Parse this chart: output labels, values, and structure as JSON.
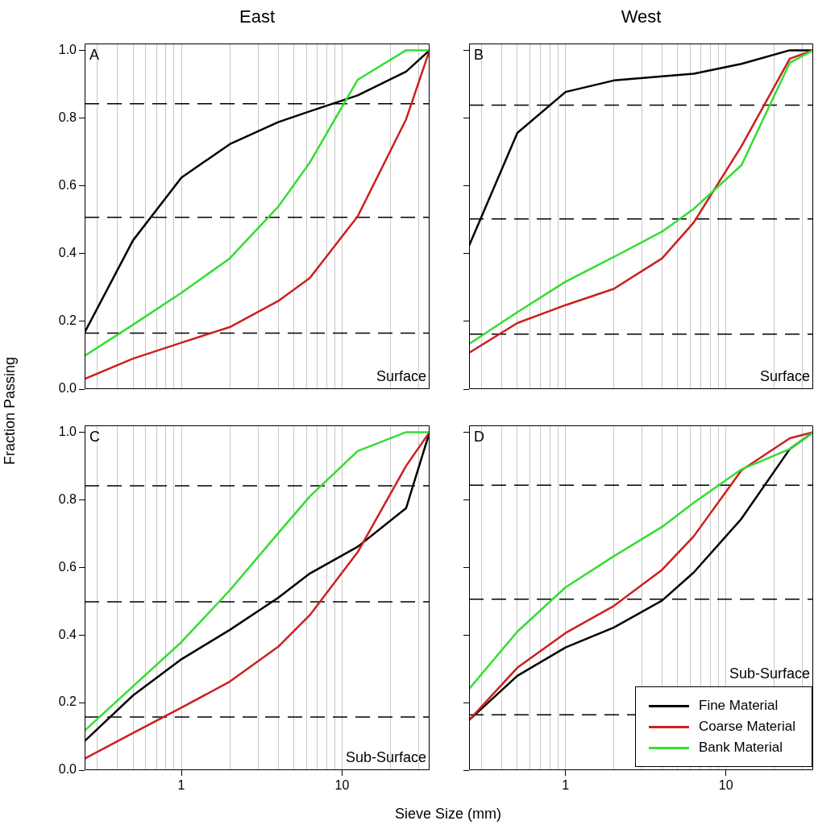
{
  "chart_data": [
    {
      "type": "line",
      "title": "East",
      "ylabel": "Fraction Passing",
      "log": "x",
      "grid": "x",
      "marker": "none",
      "line_style": "solid",
      "tick_labels": "y",
      "legend": false,
      "x": [
        0.25,
        0.5,
        1,
        2,
        4,
        6.3,
        12.5,
        25,
        35
      ],
      "xlim": [
        0.25,
        35
      ],
      "ylim": [
        0,
        1.02
      ],
      "xticks": [
        {
          "value": 0.3,
          "label": null
        },
        {
          "value": 0.4,
          "label": null
        },
        {
          "value": 0.5,
          "label": null
        },
        {
          "value": 0.6,
          "label": null
        },
        {
          "value": 0.7,
          "label": null
        },
        {
          "value": 0.8,
          "label": null
        },
        {
          "value": 0.9,
          "label": null
        },
        {
          "value": 1,
          "label": null
        },
        {
          "value": 2,
          "label": null
        },
        {
          "value": 3,
          "label": null
        },
        {
          "value": 4,
          "label": null
        },
        {
          "value": 5,
          "label": null
        },
        {
          "value": 6,
          "label": null
        },
        {
          "value": 7,
          "label": null
        },
        {
          "value": 8,
          "label": null
        },
        {
          "value": 9,
          "label": null
        },
        {
          "value": 10,
          "label": null
        },
        {
          "value": 20,
          "label": null
        },
        {
          "value": 30,
          "label": null
        }
      ],
      "yticks": [
        {
          "value": 0,
          "label": "0.0"
        },
        {
          "value": 0.2,
          "label": "0.2"
        },
        {
          "value": 0.4,
          "label": "0.4"
        },
        {
          "value": 0.6,
          "label": "0.6"
        },
        {
          "value": 0.8,
          "label": "0.8"
        },
        {
          "value": 1,
          "label": "1.0"
        }
      ],
      "series": [
        {
          "color": "#000000",
          "values": [
            0.167,
            0.439,
            0.624,
            0.723,
            0.788,
            0.82,
            0.867,
            0.937,
            1.0
          ]
        },
        {
          "color": "#cc1f1f",
          "values": [
            0.03,
            0.09,
            0.137,
            0.183,
            0.26,
            0.328,
            0.51,
            0.796,
            1.0
          ]
        },
        {
          "color": "#33dd33",
          "values": [
            0.098,
            0.19,
            0.284,
            0.386,
            0.538,
            0.669,
            0.913,
            1.0,
            1.0
          ]
        }
      ],
      "ref_lines": [
        {
          "axis": "y",
          "value": 0.842,
          "color": "#000000",
          "line_style": "dashed"
        },
        {
          "axis": "y",
          "value": 0.507,
          "color": "#000000",
          "line_style": "dashed"
        },
        {
          "axis": "y",
          "value": 0.165,
          "color": "#000000",
          "line_style": "dashed"
        }
      ],
      "annotations": [
        "A",
        "Surface"
      ]
    },
    {
      "type": "line",
      "title": "West",
      "log": "x",
      "grid": "x",
      "marker": "none",
      "line_style": "solid",
      "tick_labels": false,
      "legend": false,
      "x": [
        0.25,
        0.5,
        1,
        2,
        4,
        6.3,
        12.5,
        25,
        35
      ],
      "xlim": [
        0.25,
        35
      ],
      "ylim": [
        0,
        1.02
      ],
      "xticks": [
        {
          "value": 0.3,
          "label": null
        },
        {
          "value": 0.4,
          "label": null
        },
        {
          "value": 0.5,
          "label": null
        },
        {
          "value": 0.6,
          "label": null
        },
        {
          "value": 0.7,
          "label": null
        },
        {
          "value": 0.8,
          "label": null
        },
        {
          "value": 0.9,
          "label": null
        },
        {
          "value": 1,
          "label": null
        },
        {
          "value": 2,
          "label": null
        },
        {
          "value": 3,
          "label": null
        },
        {
          "value": 4,
          "label": null
        },
        {
          "value": 5,
          "label": null
        },
        {
          "value": 6,
          "label": null
        },
        {
          "value": 7,
          "label": null
        },
        {
          "value": 8,
          "label": null
        },
        {
          "value": 9,
          "label": null
        },
        {
          "value": 10,
          "label": null
        },
        {
          "value": 20,
          "label": null
        },
        {
          "value": 30,
          "label": null
        }
      ],
      "yticks": [
        {
          "value": 0,
          "label": null
        },
        {
          "value": 0.2,
          "label": null
        },
        {
          "value": 0.4,
          "label": null
        },
        {
          "value": 0.6,
          "label": null
        },
        {
          "value": 0.8,
          "label": null
        },
        {
          "value": 1,
          "label": null
        }
      ],
      "series": [
        {
          "color": "#000000",
          "values": [
            0.423,
            0.756,
            0.877,
            0.911,
            0.923,
            0.931,
            0.96,
            1.0,
            1.0
          ]
        },
        {
          "color": "#cc1f1f",
          "values": [
            0.107,
            0.195,
            0.248,
            0.296,
            0.386,
            0.492,
            0.717,
            0.975,
            1.0
          ]
        },
        {
          "color": "#33dd33",
          "values": [
            0.133,
            0.227,
            0.317,
            0.39,
            0.465,
            0.532,
            0.661,
            0.963,
            1.0
          ]
        }
      ],
      "ref_lines": [
        {
          "axis": "y",
          "value": 0.838,
          "color": "#000000",
          "line_style": "dashed"
        },
        {
          "axis": "y",
          "value": 0.502,
          "color": "#000000",
          "line_style": "dashed"
        },
        {
          "axis": "y",
          "value": 0.162,
          "color": "#000000",
          "line_style": "dashed"
        }
      ],
      "annotations": [
        "B",
        "Surface"
      ]
    },
    {
      "type": "line",
      "xlabel": "Sieve Size (mm)",
      "log": "x",
      "grid": "x",
      "marker": "none",
      "line_style": "solid",
      "legend": false,
      "x": [
        0.25,
        0.5,
        1,
        2,
        4,
        6.3,
        12.5,
        25,
        35
      ],
      "xlim": [
        0.25,
        35
      ],
      "ylim": [
        0,
        1.02
      ],
      "xticks": [
        {
          "value": 0.3,
          "label": null
        },
        {
          "value": 0.4,
          "label": null
        },
        {
          "value": 0.5,
          "label": null
        },
        {
          "value": 0.6,
          "label": null
        },
        {
          "value": 0.7,
          "label": null
        },
        {
          "value": 0.8,
          "label": null
        },
        {
          "value": 0.9,
          "label": null
        },
        {
          "value": 1,
          "label": "1"
        },
        {
          "value": 2,
          "label": null
        },
        {
          "value": 3,
          "label": null
        },
        {
          "value": 4,
          "label": null
        },
        {
          "value": 5,
          "label": null
        },
        {
          "value": 6,
          "label": null
        },
        {
          "value": 7,
          "label": null
        },
        {
          "value": 8,
          "label": null
        },
        {
          "value": 9,
          "label": null
        },
        {
          "value": 10,
          "label": "10"
        },
        {
          "value": 20,
          "label": null
        },
        {
          "value": 30,
          "label": null
        }
      ],
      "yticks": [
        {
          "value": 0,
          "label": "0.0"
        },
        {
          "value": 0.2,
          "label": "0.2"
        },
        {
          "value": 0.4,
          "label": "0.4"
        },
        {
          "value": 0.6,
          "label": "0.6"
        },
        {
          "value": 0.8,
          "label": "0.8"
        },
        {
          "value": 1,
          "label": "1.0"
        }
      ],
      "series": [
        {
          "color": "#000000",
          "values": [
            0.086,
            0.221,
            0.328,
            0.415,
            0.51,
            0.582,
            0.661,
            0.775,
            1.0
          ]
        },
        {
          "color": "#cc1f1f",
          "values": [
            0.034,
            0.11,
            0.185,
            0.262,
            0.365,
            0.459,
            0.645,
            0.9,
            1.0
          ]
        },
        {
          "color": "#33dd33",
          "values": [
            0.117,
            0.248,
            0.379,
            0.532,
            0.701,
            0.81,
            0.944,
            1.0,
            1.0
          ]
        }
      ],
      "ref_lines": [
        {
          "axis": "y",
          "value": 0.841,
          "color": "#000000",
          "line_style": "dashed"
        },
        {
          "axis": "y",
          "value": 0.498,
          "color": "#000000",
          "line_style": "dashed"
        },
        {
          "axis": "y",
          "value": 0.157,
          "color": "#000000",
          "line_style": "dashed"
        }
      ],
      "annotations": [
        "C",
        "Sub-Surface"
      ]
    },
    {
      "type": "line",
      "log": "x",
      "grid": "x",
      "marker": "none",
      "line_style": "solid",
      "tick_labels": "x",
      "legend": "bottom right",
      "x": [
        0.25,
        0.5,
        1,
        2,
        4,
        6.3,
        12.5,
        25,
        35
      ],
      "xlim": [
        0.25,
        35
      ],
      "ylim": [
        0,
        1.02
      ],
      "xticks": [
        {
          "value": 0.3,
          "label": null
        },
        {
          "value": 0.4,
          "label": null
        },
        {
          "value": 0.5,
          "label": null
        },
        {
          "value": 0.6,
          "label": null
        },
        {
          "value": 0.7,
          "label": null
        },
        {
          "value": 0.8,
          "label": null
        },
        {
          "value": 0.9,
          "label": null
        },
        {
          "value": 1,
          "label": "1"
        },
        {
          "value": 2,
          "label": null
        },
        {
          "value": 3,
          "label": null
        },
        {
          "value": 4,
          "label": null
        },
        {
          "value": 5,
          "label": null
        },
        {
          "value": 6,
          "label": null
        },
        {
          "value": 7,
          "label": null
        },
        {
          "value": 8,
          "label": null
        },
        {
          "value": 9,
          "label": null
        },
        {
          "value": 10,
          "label": "10"
        },
        {
          "value": 20,
          "label": null
        },
        {
          "value": 30,
          "label": null
        }
      ],
      "yticks": [
        {
          "value": 0,
          "label": null
        },
        {
          "value": 0.2,
          "label": null
        },
        {
          "value": 0.4,
          "label": null
        },
        {
          "value": 0.6,
          "label": null
        },
        {
          "value": 0.8,
          "label": null
        },
        {
          "value": 1,
          "label": null
        }
      ],
      "series": [
        {
          "name": "Fine Material",
          "color": "#000000",
          "values": [
            0.148,
            0.279,
            0.363,
            0.422,
            0.502,
            0.585,
            0.744,
            0.95,
            1.0
          ]
        },
        {
          "name": "Coarse Material",
          "color": "#cc1f1f",
          "values": [
            0.148,
            0.303,
            0.406,
            0.486,
            0.593,
            0.692,
            0.887,
            0.982,
            1.0
          ]
        },
        {
          "name": "Bank Material",
          "color": "#33dd33",
          "values": [
            0.24,
            0.41,
            0.541,
            0.633,
            0.72,
            0.791,
            0.89,
            0.95,
            1.0
          ]
        }
      ],
      "ref_lines": [
        {
          "axis": "y",
          "value": 0.843,
          "color": "#000000",
          "line_style": "dashed"
        },
        {
          "axis": "y",
          "value": 0.506,
          "color": "#000000",
          "line_style": "dashed"
        },
        {
          "axis": "y",
          "value": 0.164,
          "color": "#000000",
          "line_style": "dashed"
        }
      ],
      "annotations": [
        "D",
        "Sub-Surface"
      ]
    }
  ]
}
